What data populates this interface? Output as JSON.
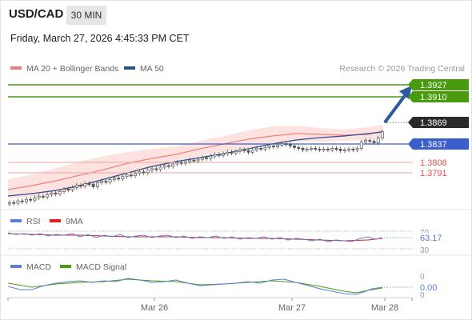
{
  "header": {
    "symbol": "USD/CAD",
    "timeframe": "30 MIN",
    "datetime": "Friday, March 27, 2026 4:45:33 PM CET"
  },
  "legend": {
    "ma20_label": "MA 20 + Bollinger Bands",
    "ma50_label": "MA 50",
    "credit": "Research © 2026 Trading Central",
    "rsi_label": "RSI",
    "rsi_ma_label": "9MA",
    "macd_label": "MACD",
    "macd_signal_label": "MACD Signal"
  },
  "colors": {
    "ma20": "#f08080",
    "ma50": "#2a4d8f",
    "resistance": "#4a9a10",
    "support_blue": "#3a5fcd",
    "support_red": "#e05050",
    "bollinger_fill": "#fde3e0",
    "candle": "#555555",
    "rsi": "#5b7fd6",
    "rsi_ma": "#e02020",
    "macd": "#5b7fd6",
    "macd_signal": "#4a9a10",
    "arrow": "#2a5aa0"
  },
  "price_levels": [
    {
      "value": "1.3927",
      "kind": "resistance",
      "style": "box-green"
    },
    {
      "value": "1.3910",
      "kind": "resistance",
      "style": "box-green"
    },
    {
      "value": "1.3869",
      "kind": "last",
      "style": "box-dark"
    },
    {
      "value": "1.3837",
      "kind": "support",
      "style": "box-blue"
    },
    {
      "value": "1.3808",
      "kind": "support",
      "style": "text-red"
    },
    {
      "value": "1.3791",
      "kind": "support",
      "style": "text-red"
    }
  ],
  "rsi_panel": {
    "value": "63.17",
    "upper_tick": "70",
    "lower_tick": "30"
  },
  "macd_panel": {
    "value": "0.00",
    "upper_tick": "0",
    "lower_tick": "0"
  },
  "x_axis": {
    "ticks": [
      "Mar 26",
      "Mar 27",
      "Mar 28"
    ]
  },
  "chart_data": {
    "type": "candlestick",
    "close_series": [
      1.3779,
      1.3778,
      1.3781,
      1.378,
      1.3783,
      1.3782,
      1.3785,
      1.3787,
      1.3786,
      1.3789,
      1.3791,
      1.379,
      1.3793,
      1.3796,
      1.3795,
      1.3798,
      1.3801,
      1.38,
      1.3803,
      1.3802,
      1.3799,
      1.3804,
      1.3806,
      1.3805,
      1.3808,
      1.381,
      1.3809,
      1.3812,
      1.3814,
      1.3813,
      1.3816,
      1.3818,
      1.3817,
      1.382,
      1.3822,
      1.3821,
      1.3824,
      1.3826,
      1.3825,
      1.3828,
      1.383,
      1.3829,
      1.3831,
      1.3833,
      1.3832,
      1.3834,
      1.3836,
      1.3835,
      1.3838,
      1.384,
      1.3839,
      1.3841,
      1.3843,
      1.3842,
      1.3844,
      1.3846,
      1.3845,
      1.3843,
      1.3846,
      1.3848,
      1.3847,
      1.3849,
      1.3851,
      1.385,
      1.3852,
      1.3854,
      1.3853,
      1.3851,
      1.3849,
      1.3848,
      1.3846,
      1.3847,
      1.3848,
      1.3847,
      1.3846,
      1.3847,
      1.3846,
      1.3848,
      1.3847,
      1.3845,
      1.3846,
      1.3847,
      1.3846,
      1.3848,
      1.3856,
      1.3858,
      1.3857,
      1.3855,
      1.3861,
      1.3869
    ],
    "ylim": [
      1.3776,
      1.3935
    ]
  }
}
